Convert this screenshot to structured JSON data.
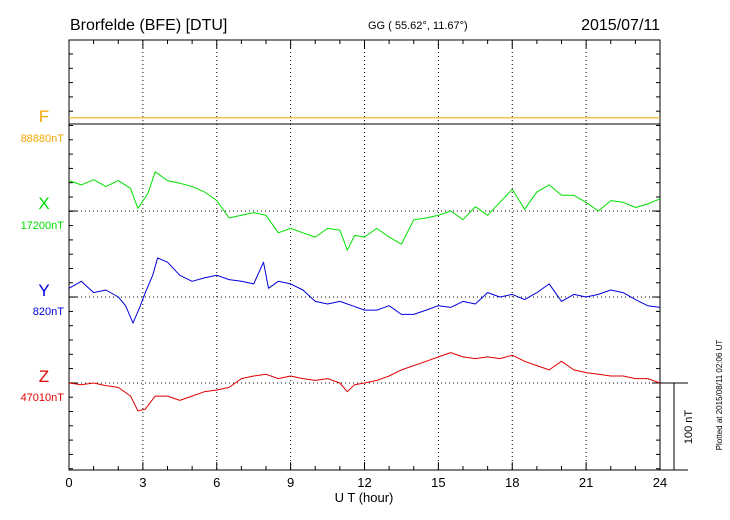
{
  "header": {
    "station": "Brorfelde (BFE)  [DTU]",
    "coords": "GG ( 55.62°,  11.67°)",
    "date": "2015/07/11"
  },
  "footer": {
    "plotted": "Plotted at 2015/08/11 02:06 UT"
  },
  "chart_data": {
    "type": "line",
    "xlabel": "U T (hour)",
    "xlim": [
      0,
      24
    ],
    "x_ticks": [
      0,
      3,
      6,
      9,
      12,
      15,
      18,
      21,
      24
    ],
    "x_tick_labels": [
      "0",
      "3",
      "6",
      "9",
      "12",
      "15",
      "18",
      "21",
      "24"
    ],
    "grid": true,
    "scale_bar": {
      "label": "100 nT",
      "value_nT": 100
    },
    "series": [
      {
        "name": "F",
        "baseline_label": "88880nT",
        "color": "#f0a800",
        "x": [
          0,
          24
        ],
        "values": [
          7,
          7
        ]
      },
      {
        "name": "X",
        "baseline_label": "17200nT",
        "color": "#00e000",
        "x": [
          0,
          0.5,
          1,
          1.5,
          2,
          2.5,
          2.8,
          3.2,
          3.5,
          4,
          4.5,
          5,
          5.5,
          6,
          6.5,
          7,
          7.5,
          8,
          8.5,
          9,
          9.5,
          10,
          10.5,
          11,
          11.3,
          11.6,
          12,
          12.5,
          13,
          13.5,
          14,
          14.5,
          15,
          15.5,
          16,
          16.5,
          17,
          17.5,
          18,
          18.5,
          19,
          19.5,
          20,
          20.5,
          21,
          21.5,
          22,
          22.5,
          23,
          23.5,
          24
        ],
        "values": [
          35,
          30,
          36,
          28,
          35,
          26,
          3,
          20,
          45,
          35,
          32,
          28,
          22,
          12,
          -8,
          -5,
          -2,
          -5,
          -25,
          -20,
          -25,
          -30,
          -20,
          -22,
          -45,
          -28,
          -30,
          -20,
          -30,
          -38,
          -10,
          -8,
          -5,
          0,
          -10,
          5,
          -5,
          10,
          25,
          2,
          22,
          30,
          18,
          18,
          10,
          0,
          12,
          10,
          4,
          8,
          14
        ]
      },
      {
        "name": "Y",
        "baseline_label": "820nT",
        "color": "#0000e0",
        "x": [
          0,
          0.5,
          1,
          1.5,
          2,
          2.3,
          2.6,
          2.9,
          3.1,
          3.4,
          3.6,
          4,
          4.5,
          5,
          5.5,
          6,
          6.5,
          7,
          7.5,
          7.9,
          8.1,
          8.5,
          9,
          9.5,
          10,
          10.5,
          11,
          11.5,
          12,
          12.5,
          13,
          13.5,
          14,
          14.5,
          15,
          15.5,
          16,
          16.5,
          17,
          17.5,
          18,
          18.5,
          19,
          19.5,
          20,
          20.5,
          21,
          21.5,
          22,
          22.5,
          23,
          23.5,
          24
        ],
        "values": [
          10,
          18,
          5,
          8,
          0,
          -10,
          -30,
          -10,
          5,
          25,
          45,
          40,
          25,
          18,
          22,
          25,
          20,
          18,
          15,
          40,
          10,
          18,
          15,
          8,
          -5,
          -8,
          -5,
          -10,
          -15,
          -15,
          -10,
          -20,
          -20,
          -15,
          -10,
          -12,
          -5,
          -8,
          5,
          0,
          3,
          -3,
          5,
          15,
          -5,
          3,
          0,
          3,
          8,
          5,
          -3,
          -10,
          -12
        ]
      },
      {
        "name": "Z",
        "baseline_label": "47010nT",
        "color": "#e00000",
        "x": [
          0,
          0.5,
          1,
          1.5,
          2,
          2.5,
          2.8,
          3.1,
          3.5,
          4,
          4.5,
          5,
          5.5,
          6,
          6.5,
          7,
          7.5,
          8,
          8.5,
          9,
          9.5,
          10,
          10.5,
          11,
          11.3,
          11.6,
          12,
          12.5,
          13,
          13.5,
          14,
          14.5,
          15,
          15.5,
          16,
          16.5,
          17,
          17.5,
          18,
          18.5,
          19,
          19.5,
          20,
          20.5,
          21,
          21.5,
          22,
          22.5,
          23,
          23.5,
          24
        ],
        "values": [
          0,
          -2,
          0,
          -3,
          -5,
          -15,
          -32,
          -30,
          -15,
          -15,
          -20,
          -15,
          -10,
          -8,
          -5,
          5,
          8,
          10,
          5,
          8,
          5,
          3,
          5,
          0,
          -10,
          -2,
          0,
          3,
          8,
          15,
          20,
          25,
          30,
          35,
          30,
          28,
          30,
          28,
          32,
          25,
          20,
          15,
          25,
          15,
          12,
          10,
          8,
          8,
          5,
          5,
          0
        ]
      }
    ]
  }
}
